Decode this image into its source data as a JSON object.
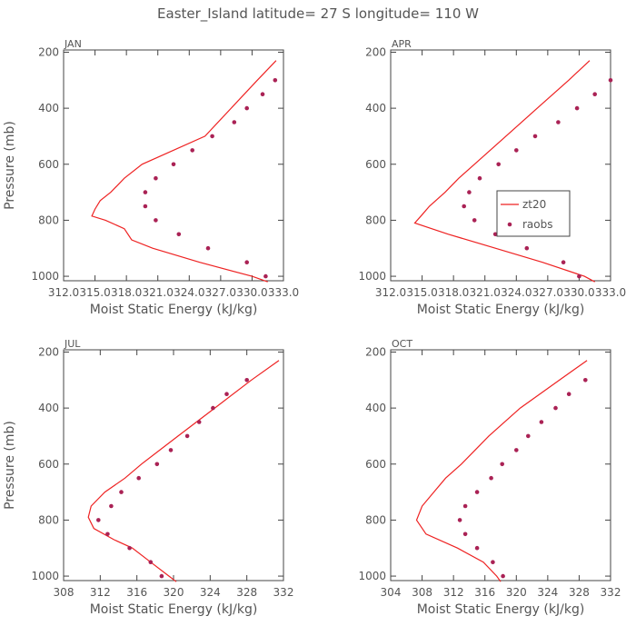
{
  "title": "Easter_Island  latitude= 27 S longitude= 110 W",
  "line_color": "#ee2222",
  "marker_color": "#aa2255",
  "legend": {
    "line": "zt20",
    "marker": "raobs"
  },
  "chart_data": [
    {
      "type": "line",
      "panel_label": "JAN",
      "xlabel": "Moist Static Energy (kJ/kg)",
      "ylabel": "Pressure (mb)",
      "xlim": [
        312,
        333
      ],
      "ylim": [
        1000,
        200
      ],
      "y_inverted": true,
      "xtick_labels": [
        "312.0",
        "315.0",
        "318.0",
        "321.0",
        "324.0",
        "327.0",
        "330.0",
        "333.0"
      ],
      "xtick_values": [
        312,
        315,
        318,
        321,
        324,
        327,
        330,
        333
      ],
      "ytick_labels": [
        "200",
        "400",
        "600",
        "800",
        "1000"
      ],
      "ytick_values": [
        200,
        400,
        600,
        800,
        1000
      ],
      "legend_visible": false,
      "series": [
        {
          "name": "zt20",
          "kind": "line",
          "pressure": [
            230,
            300,
            400,
            500,
            600,
            650,
            700,
            730,
            760,
            785,
            800,
            830,
            870,
            900,
            950,
            1000,
            1020
          ],
          "values": [
            332.3,
            330.5,
            328.0,
            325.5,
            319.5,
            317.8,
            316.5,
            315.5,
            315.0,
            314.7,
            316.0,
            317.8,
            318.5,
            320.5,
            325.0,
            330.0,
            331.5
          ]
        },
        {
          "name": "raobs",
          "kind": "marker",
          "pressure": [
            300,
            350,
            400,
            450,
            500,
            550,
            600,
            650,
            700,
            750,
            800,
            850,
            900,
            950,
            1000
          ],
          "values": [
            332.2,
            331.0,
            329.5,
            328.3,
            326.2,
            324.3,
            322.5,
            320.8,
            319.8,
            319.8,
            320.8,
            323.0,
            325.8,
            329.5,
            331.3
          ]
        }
      ]
    },
    {
      "type": "line",
      "panel_label": "APR",
      "xlabel": "Moist Static Energy (kJ/kg)",
      "ylabel": "",
      "xlim": [
        312,
        333
      ],
      "ylim": [
        1000,
        200
      ],
      "y_inverted": true,
      "xtick_labels": [
        "312.0",
        "315.0",
        "318.0",
        "321.0",
        "324.0",
        "327.0",
        "330.0",
        "333.0"
      ],
      "xtick_values": [
        312,
        315,
        318,
        321,
        324,
        327,
        330,
        333
      ],
      "ytick_labels": [
        "200",
        "400",
        "600",
        "800",
        "1000"
      ],
      "ytick_values": [
        200,
        400,
        600,
        800,
        1000
      ],
      "legend_visible": true,
      "legend_position": "center-right",
      "series": [
        {
          "name": "zt20",
          "kind": "line",
          "pressure": [
            230,
            300,
            400,
            500,
            600,
            650,
            700,
            750,
            780,
            810,
            850,
            900,
            950,
            1000,
            1020
          ],
          "values": [
            331.0,
            329.0,
            326.0,
            323.0,
            320.0,
            318.5,
            317.2,
            315.7,
            315.0,
            314.3,
            317.5,
            322.0,
            326.5,
            330.5,
            331.5
          ]
        },
        {
          "name": "raobs",
          "kind": "marker",
          "pressure": [
            300,
            350,
            400,
            450,
            500,
            550,
            600,
            650,
            700,
            750,
            800,
            850,
            900,
            950,
            1000
          ],
          "values": [
            333.0,
            331.5,
            329.8,
            328.0,
            325.8,
            324.0,
            322.3,
            320.5,
            319.5,
            319.0,
            320.0,
            322.0,
            325.0,
            328.5,
            330.0
          ]
        }
      ]
    },
    {
      "type": "line",
      "panel_label": "JUL",
      "xlabel": "Moist Static Energy (kJ/kg)",
      "ylabel": "Pressure (mb)",
      "xlim": [
        308,
        332
      ],
      "ylim": [
        1000,
        200
      ],
      "y_inverted": true,
      "xtick_labels": [
        "308",
        "312",
        "316",
        "320",
        "324",
        "328",
        "332"
      ],
      "xtick_values": [
        308,
        312,
        316,
        320,
        324,
        328,
        332
      ],
      "ytick_labels": [
        "200",
        "400",
        "600",
        "800",
        "1000"
      ],
      "ytick_values": [
        200,
        400,
        600,
        800,
        1000
      ],
      "legend_visible": false,
      "series": [
        {
          "name": "zt20",
          "kind": "line",
          "pressure": [
            230,
            300,
            400,
            500,
            600,
            650,
            700,
            750,
            790,
            830,
            870,
            900,
            950,
            1000,
            1020
          ],
          "values": [
            331.5,
            328.5,
            324.5,
            320.5,
            316.5,
            314.7,
            312.5,
            311.0,
            310.7,
            311.3,
            313.5,
            315.5,
            317.5,
            319.5,
            320.3
          ]
        },
        {
          "name": "raobs",
          "kind": "marker",
          "pressure": [
            300,
            350,
            400,
            450,
            500,
            550,
            600,
            650,
            700,
            750,
            800,
            850,
            900,
            950,
            1000
          ],
          "values": [
            328.0,
            325.8,
            324.3,
            322.8,
            321.5,
            319.7,
            318.2,
            316.2,
            314.3,
            313.2,
            311.8,
            312.8,
            315.2,
            317.5,
            318.7
          ]
        }
      ]
    },
    {
      "type": "line",
      "panel_label": "OCT",
      "xlabel": "Moist Static Energy (kJ/kg)",
      "ylabel": "",
      "xlim": [
        304,
        332
      ],
      "ylim": [
        1000,
        200
      ],
      "y_inverted": true,
      "xtick_labels": [
        "304",
        "308",
        "312",
        "316",
        "320",
        "324",
        "328",
        "332"
      ],
      "xtick_values": [
        304,
        308,
        312,
        316,
        320,
        324,
        328,
        332
      ],
      "ytick_labels": [
        "200",
        "400",
        "600",
        "800",
        "1000"
      ],
      "ytick_values": [
        200,
        400,
        600,
        800,
        1000
      ],
      "legend_visible": false,
      "series": [
        {
          "name": "zt20",
          "kind": "line",
          "pressure": [
            230,
            300,
            400,
            500,
            600,
            650,
            700,
            750,
            800,
            850,
            900,
            950,
            1000,
            1020
          ],
          "values": [
            329.0,
            325.5,
            320.5,
            316.5,
            313.0,
            311.0,
            309.5,
            308.0,
            307.3,
            308.5,
            312.5,
            315.8,
            317.5,
            318.0
          ]
        },
        {
          "name": "raobs",
          "kind": "marker",
          "pressure": [
            300,
            350,
            400,
            450,
            500,
            550,
            600,
            650,
            700,
            750,
            800,
            850,
            900,
            950,
            1000
          ],
          "values": [
            328.8,
            326.7,
            325.0,
            323.2,
            321.5,
            320.0,
            318.2,
            316.8,
            315.0,
            313.5,
            312.8,
            313.5,
            315.0,
            317.0,
            318.3
          ]
        }
      ]
    }
  ]
}
